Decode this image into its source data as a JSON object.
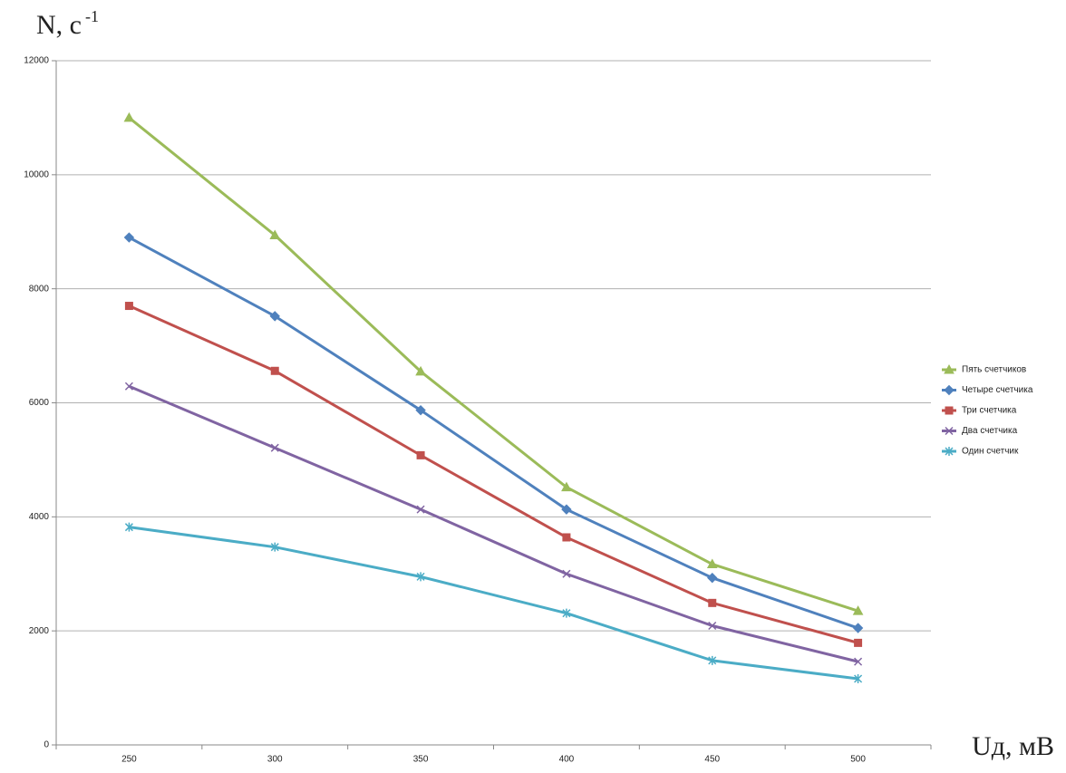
{
  "chart_data": {
    "type": "line",
    "ylabel": {
      "text": "N, с",
      "superscript": "-1"
    },
    "xlabel": "Uд, мВ",
    "categories": [
      "250",
      "300",
      "350",
      "400",
      "450",
      "500"
    ],
    "ylim": [
      0,
      12000
    ],
    "yticks": [
      0,
      2000,
      4000,
      6000,
      8000,
      10000,
      12000
    ],
    "grid": true,
    "legend": "right",
    "series": [
      {
        "name": "Пять счетчиков",
        "color": "#9bbb59",
        "marker": "triangle",
        "values": [
          11000,
          8940,
          6550,
          4520,
          3170,
          2350
        ]
      },
      {
        "name": "Четыре счетчика",
        "color": "#4f81bd",
        "marker": "diamond",
        "values": [
          8900,
          7520,
          5870,
          4130,
          2930,
          2050
        ]
      },
      {
        "name": "Три счетчика",
        "color": "#c0504d",
        "marker": "square",
        "values": [
          7700,
          6560,
          5080,
          3640,
          2490,
          1790
        ]
      },
      {
        "name": "Два счетчика",
        "color": "#8064a2",
        "marker": "x",
        "values": [
          6290,
          5210,
          4130,
          3000,
          2090,
          1460
        ]
      },
      {
        "name": "Один счетчик",
        "color": "#4bacc6",
        "marker": "star",
        "values": [
          3820,
          3470,
          2950,
          2310,
          1480,
          1160
        ]
      }
    ]
  }
}
